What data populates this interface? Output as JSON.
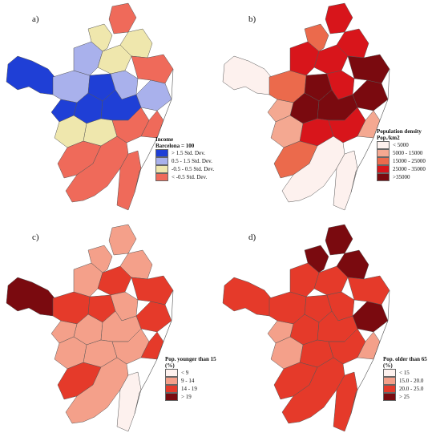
{
  "panels": [
    {
      "label": "a)",
      "legend": {
        "title_lines": [
          "Income",
          "Barcelona = 100"
        ],
        "items": [
          {
            "label": "> 1.5 Std. Dev.",
            "color": "#1f3fd6"
          },
          {
            "label": "0.5 - 1.5 Std. Dev.",
            "color": "#a9b1ec"
          },
          {
            "label": "-0.5 - 0.5 Std. Dev.",
            "color": "#efe7ad"
          },
          {
            "label": "< -0.5 Std. Dev.",
            "color": "#ef6a5a"
          }
        ]
      }
    },
    {
      "label": "b)",
      "legend": {
        "title_lines": [
          "Population density",
          "Pop./km2"
        ],
        "items": [
          {
            "label": "< 5000",
            "color": "#fdf1ee"
          },
          {
            "label": "5000 - 15000",
            "color": "#f4a891"
          },
          {
            "label": "15000 - 25000",
            "color": "#eb6a4c"
          },
          {
            "label": "25000 - 35000",
            "color": "#d8151b"
          },
          {
            "label": ">35000",
            "color": "#7a0a0f"
          }
        ]
      }
    },
    {
      "label": "c)",
      "legend": {
        "title_lines": [
          "Pop. younger than 15",
          "(%)"
        ],
        "items": [
          {
            "label": "< 9",
            "color": "#fdf1ee"
          },
          {
            "label": "9 - 14",
            "color": "#f4a08a"
          },
          {
            "label": "14 - 19",
            "color": "#e53a2a"
          },
          {
            "label": "> 19",
            "color": "#7a0a0f"
          }
        ]
      }
    },
    {
      "label": "d)",
      "legend": {
        "title_lines": [
          "Pop. older than 65",
          "(%)"
        ],
        "items": [
          {
            "label": "< 15",
            "color": "#fdf1ee"
          },
          {
            "label": "15.0 - 20.0",
            "color": "#f4a08a"
          },
          {
            "label": "20.0 - 25.0",
            "color": "#e53a2a"
          },
          {
            "label": "> 25",
            "color": "#7a0a0f"
          }
        ]
      }
    }
  ]
}
